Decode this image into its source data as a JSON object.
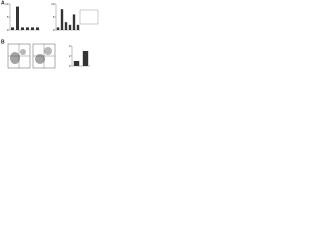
{
  "panel_labels": [
    "A",
    "B"
  ],
  "chart_data": [
    {
      "type": "bar",
      "categories": [
        null,
        null,
        null,
        null,
        null,
        null
      ],
      "values": [
        1,
        9,
        1,
        1,
        1,
        1
      ],
      "color": "#333333",
      "ylim": [
        0,
        10
      ],
      "yticks": [
        0,
        5,
        10
      ]
    },
    {
      "type": "bar",
      "categories": [
        null,
        null,
        null,
        null,
        null,
        null
      ],
      "values": [
        1,
        8,
        3,
        2,
        6,
        2
      ],
      "color": "#333333",
      "ylim": [
        0,
        10
      ],
      "yticks": [
        0,
        5,
        10
      ]
    },
    {
      "type": "bar",
      "categories": [
        null,
        null
      ],
      "values": [
        1,
        3
      ],
      "color": "#333333",
      "ylim": [
        0,
        4
      ],
      "yticks": [
        0,
        2,
        4
      ]
    }
  ]
}
